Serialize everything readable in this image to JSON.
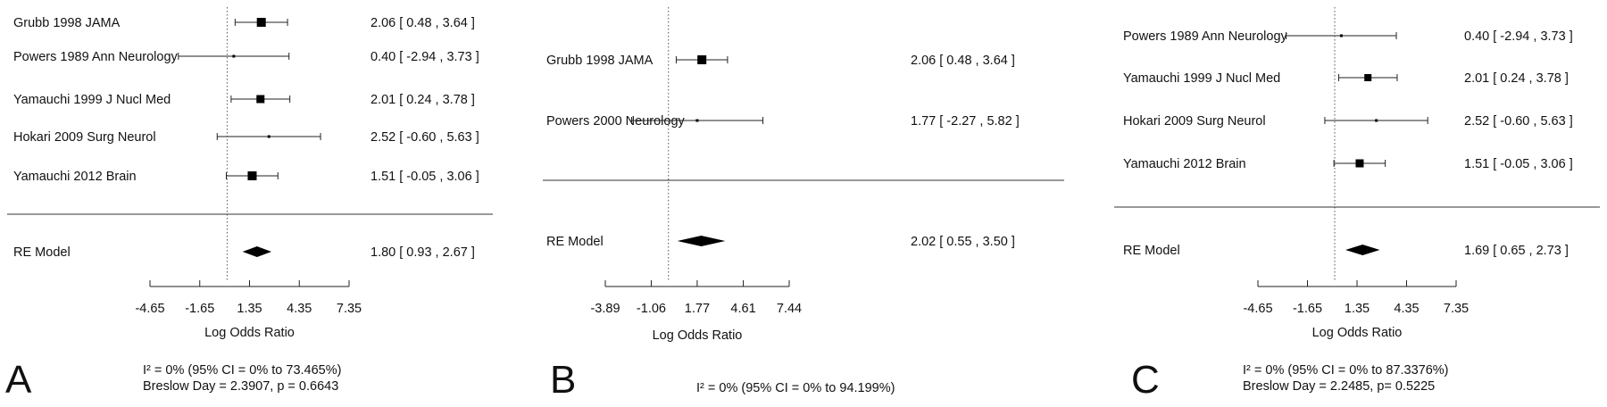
{
  "chart_data": [
    {
      "type": "forest",
      "panel_label": "A",
      "xlabel": "Log Odds Ratio",
      "xlim": [
        -4.65,
        7.35
      ],
      "ticks": [
        -4.65,
        -1.65,
        1.35,
        4.35,
        7.35
      ],
      "tick_labels": [
        "-4.65",
        "-1.65",
        "1.35",
        "4.35",
        "7.35"
      ],
      "reference_line": 0,
      "studies": [
        {
          "label": "Grubb 1998 JAMA",
          "estimate": 2.06,
          "ci": [
            0.48,
            3.64
          ],
          "ci_text": "2.06 [  0.48 ,  3.64 ]",
          "weight": 10
        },
        {
          "label": "Powers 1989 Ann Neurology",
          "estimate": 0.4,
          "ci": [
            -2.94,
            3.73
          ],
          "ci_text": "0.40 [ -2.94 ,  3.73 ]",
          "weight": 3
        },
        {
          "label": "Yamauchi 1999 J Nucl Med",
          "estimate": 2.01,
          "ci": [
            0.24,
            3.78
          ],
          "ci_text": "2.01 [  0.24 ,  3.78 ]",
          "weight": 9
        },
        {
          "label": "Hokari 2009 Surg Neurol",
          "estimate": 2.52,
          "ci": [
            -0.6,
            5.63
          ],
          "ci_text": "2.52 [ -0.60 ,  5.63 ]",
          "weight": 3
        },
        {
          "label": "Yamauchi 2012 Brain",
          "estimate": 1.51,
          "ci": [
            -0.05,
            3.06
          ],
          "ci_text": "1.51 [ -0.05 ,  3.06 ]",
          "weight": 10
        }
      ],
      "summary": {
        "label": "RE Model",
        "estimate": 1.8,
        "ci": [
          0.93,
          2.67
        ],
        "ci_text": "1.80 [  0.93 ,  2.67 ]"
      },
      "stats_line1": "I² = 0% (95% CI = 0% to 73.465%)",
      "stats_line2": "Breslow Day = 2.3907, p = 0.6643"
    },
    {
      "type": "forest",
      "panel_label": "B",
      "xlabel": "Log Odds Ratio",
      "xlim": [
        -3.89,
        7.44
      ],
      "ticks": [
        -3.89,
        -1.06,
        1.77,
        4.61,
        7.44
      ],
      "tick_labels": [
        "-3.89",
        "-1.06",
        "1.77",
        "4.61",
        "7.44"
      ],
      "reference_line": 0,
      "studies": [
        {
          "label": "Grubb 1998 JAMA",
          "estimate": 2.06,
          "ci": [
            0.48,
            3.64
          ],
          "ci_text": "2.06 [  0.48 ,  3.64 ]",
          "weight": 10
        },
        {
          "label": "Powers 2000 Neurology",
          "estimate": 1.77,
          "ci": [
            -2.27,
            5.82
          ],
          "ci_text": "1.77 [ -2.27 ,  5.82 ]",
          "weight": 3
        }
      ],
      "summary": {
        "label": "RE Model",
        "estimate": 2.02,
        "ci": [
          0.55,
          3.5
        ],
        "ci_text": "2.02 [  0.55 ,  3.50 ]"
      },
      "stats_line1": "I² = 0% (95% CI = 0% to 94.199%)",
      "stats_line2": ""
    },
    {
      "type": "forest",
      "panel_label": "C",
      "xlabel": "Log Odds Ratio",
      "xlim": [
        -4.65,
        7.35
      ],
      "ticks": [
        -4.65,
        -1.65,
        1.35,
        4.35,
        7.35
      ],
      "tick_labels": [
        "-4.65",
        "-1.65",
        "1.35",
        "4.35",
        "7.35"
      ],
      "reference_line": 0,
      "studies": [
        {
          "label": "Powers 1989 Ann Neurology",
          "estimate": 0.4,
          "ci": [
            -2.94,
            3.73
          ],
          "ci_text": "0.40 [ -2.94 ,  3.73 ]",
          "weight": 3
        },
        {
          "label": "Yamauchi 1999 J Nucl Med",
          "estimate": 2.01,
          "ci": [
            0.24,
            3.78
          ],
          "ci_text": "2.01 [  0.24 ,  3.78 ]",
          "weight": 8
        },
        {
          "label": "Hokari 2009 Surg Neurol",
          "estimate": 2.52,
          "ci": [
            -0.6,
            5.63
          ],
          "ci_text": "2.52 [ -0.60 ,  5.63 ]",
          "weight": 3
        },
        {
          "label": "Yamauchi 2012 Brain",
          "estimate": 1.51,
          "ci": [
            -0.05,
            3.06
          ],
          "ci_text": "1.51 [ -0.05 ,  3.06 ]",
          "weight": 9
        }
      ],
      "summary": {
        "label": "RE Model",
        "estimate": 1.69,
        "ci": [
          0.65,
          2.73
        ],
        "ci_text": "1.69 [  0.65 ,  2.73 ]"
      },
      "stats_line1": "I² = 0% (95% CI = 0% to 87.3376%)",
      "stats_line2": "Breslow Day = 2.2485, p= 0.5225"
    }
  ]
}
